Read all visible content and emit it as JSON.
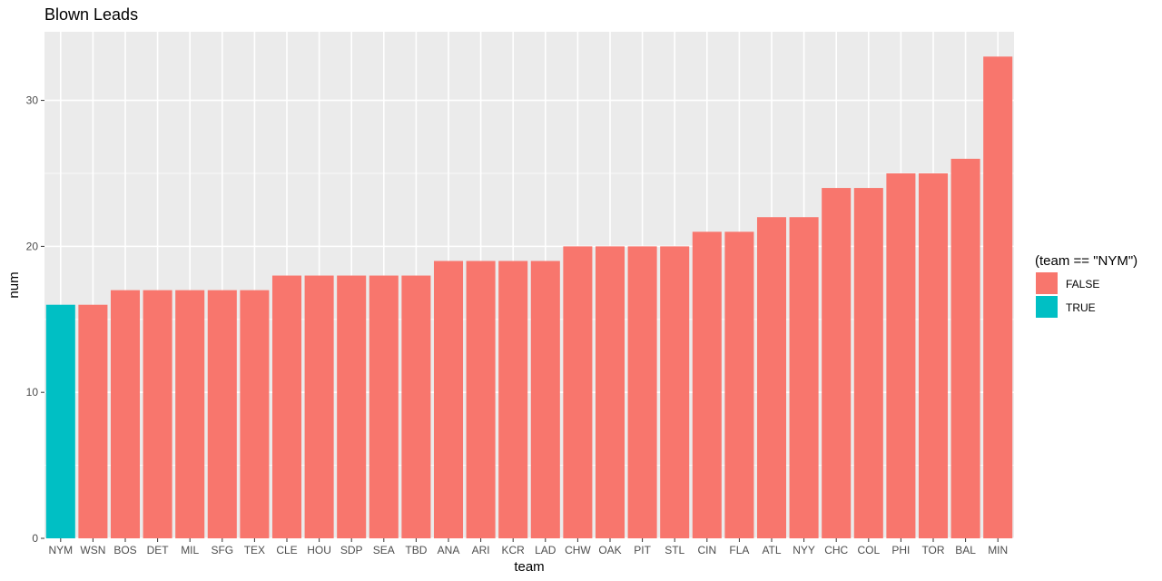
{
  "chart_data": {
    "type": "bar",
    "title": "Blown Leads",
    "xlabel": "team",
    "ylabel": "num",
    "ylim": [
      0,
      34.7
    ],
    "yticks": [
      0,
      10,
      20,
      30
    ],
    "categories": [
      "NYM",
      "WSN",
      "BOS",
      "DET",
      "MIL",
      "SFG",
      "TEX",
      "CLE",
      "HOU",
      "SDP",
      "SEA",
      "TBD",
      "ANA",
      "ARI",
      "KCR",
      "LAD",
      "CHW",
      "OAK",
      "PIT",
      "STL",
      "CIN",
      "FLA",
      "ATL",
      "NYY",
      "CHC",
      "COL",
      "PHI",
      "TOR",
      "BAL",
      "MIN"
    ],
    "values": [
      16,
      16,
      17,
      17,
      17,
      17,
      17,
      18,
      18,
      18,
      18,
      18,
      19,
      19,
      19,
      19,
      20,
      20,
      20,
      20,
      21,
      21,
      22,
      22,
      24,
      24,
      25,
      25,
      26,
      33
    ],
    "highlight": [
      true,
      false,
      false,
      false,
      false,
      false,
      false,
      false,
      false,
      false,
      false,
      false,
      false,
      false,
      false,
      false,
      false,
      false,
      false,
      false,
      false,
      false,
      false,
      false,
      false,
      false,
      false,
      false,
      false,
      false
    ],
    "grid": true,
    "legend": {
      "title": "(team == \"NYM\")",
      "placement": "right",
      "entries": [
        {
          "label": "FALSE",
          "color": "#F8766D"
        },
        {
          "label": "TRUE",
          "color": "#00BFC4"
        }
      ]
    },
    "colors": {
      "panel": "#EBEBEB",
      "grid": "#FFFFFF",
      "false": "#F8766D",
      "true": "#00BFC4"
    }
  }
}
